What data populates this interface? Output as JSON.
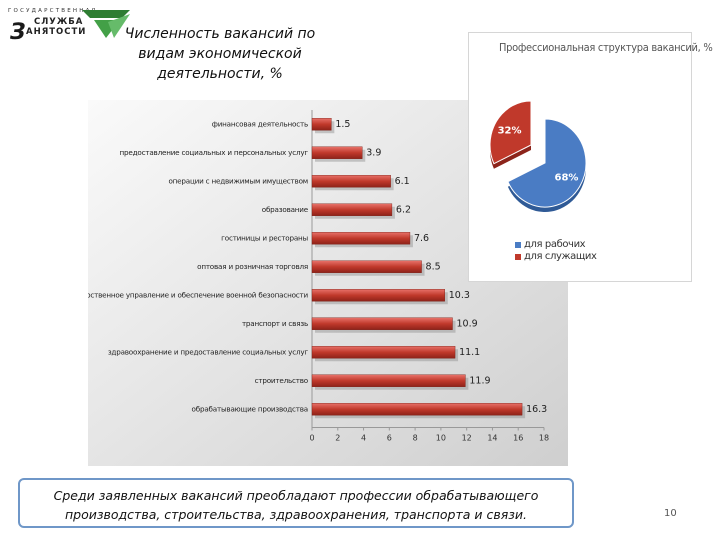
{
  "logo": {
    "line1": "ГОСУДАРСТВЕННАЯ",
    "line2": "СЛУЖБА",
    "letter": "З",
    "line3": "АНЯТОСТИ"
  },
  "title": "Численность вакансий по видам экономической деятельности, %",
  "chart_data": [
    {
      "type": "bar",
      "orientation": "horizontal",
      "categories": [
        "финансовая деятельность",
        "предоставление социальных и персональных услуг",
        "операции с недвижимым имуществом",
        "образование",
        "гостиницы и рестораны",
        "оптовая и розничная торговля",
        "государственное управление и обеспечение военной безопасности",
        "транспорт и связь",
        "здравоохранение и предоставление социальных услуг",
        "строительство",
        "обрабатывающие производства"
      ],
      "values": [
        1.5,
        3.9,
        6.1,
        6.2,
        7.6,
        8.5,
        10.3,
        10.9,
        11.1,
        11.9,
        16.3
      ],
      "xlim": [
        0,
        18
      ],
      "xticks": [
        0,
        2,
        4,
        6,
        8,
        10,
        12,
        14,
        16,
        18
      ],
      "xlabel": "",
      "ylabel": "",
      "bar_color": "#c0392b",
      "grid": false
    },
    {
      "type": "pie",
      "title": "Профессиональная структура вакансий, %",
      "labels": [
        "для рабочих",
        "для служащих"
      ],
      "values": [
        68,
        32
      ],
      "data_labels": [
        "68%",
        "32%"
      ],
      "colors": [
        "#4a7cc4",
        "#c0392b"
      ],
      "legend": "bottom"
    }
  ],
  "caption": "Среди заявленных вакансий преобладают профессии обрабатывающего производства, строительства, здравоохранения, транспорта и связи.",
  "page_number": "10"
}
